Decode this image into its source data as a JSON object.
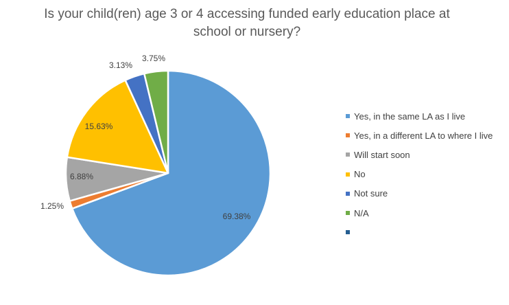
{
  "chart_data": {
    "type": "pie",
    "title": "Is your child(ren) age 3 or 4 accessing funded early education place at school or nursery?",
    "legend_position": "right",
    "slices": [
      {
        "label": "Yes, in the same LA as I live",
        "value": 69.38,
        "display": "69.38%",
        "color": "#5B9BD5"
      },
      {
        "label": "Yes, in a different LA to where I live",
        "value": 1.25,
        "display": "1.25%",
        "color": "#ED7D31"
      },
      {
        "label": "Will start soon",
        "value": 6.88,
        "display": "6.88%",
        "color": "#A5A5A5"
      },
      {
        "label": "No",
        "value": 15.63,
        "display": "15.63%",
        "color": "#FFC000"
      },
      {
        "label": "Not sure",
        "value": 3.13,
        "display": "3.13%",
        "color": "#4472C4"
      },
      {
        "label": "N/A",
        "value": 3.75,
        "display": "3.75%",
        "color": "#70AD47"
      },
      {
        "label": "",
        "value": 0,
        "display": "",
        "color": "#255E91"
      }
    ]
  }
}
